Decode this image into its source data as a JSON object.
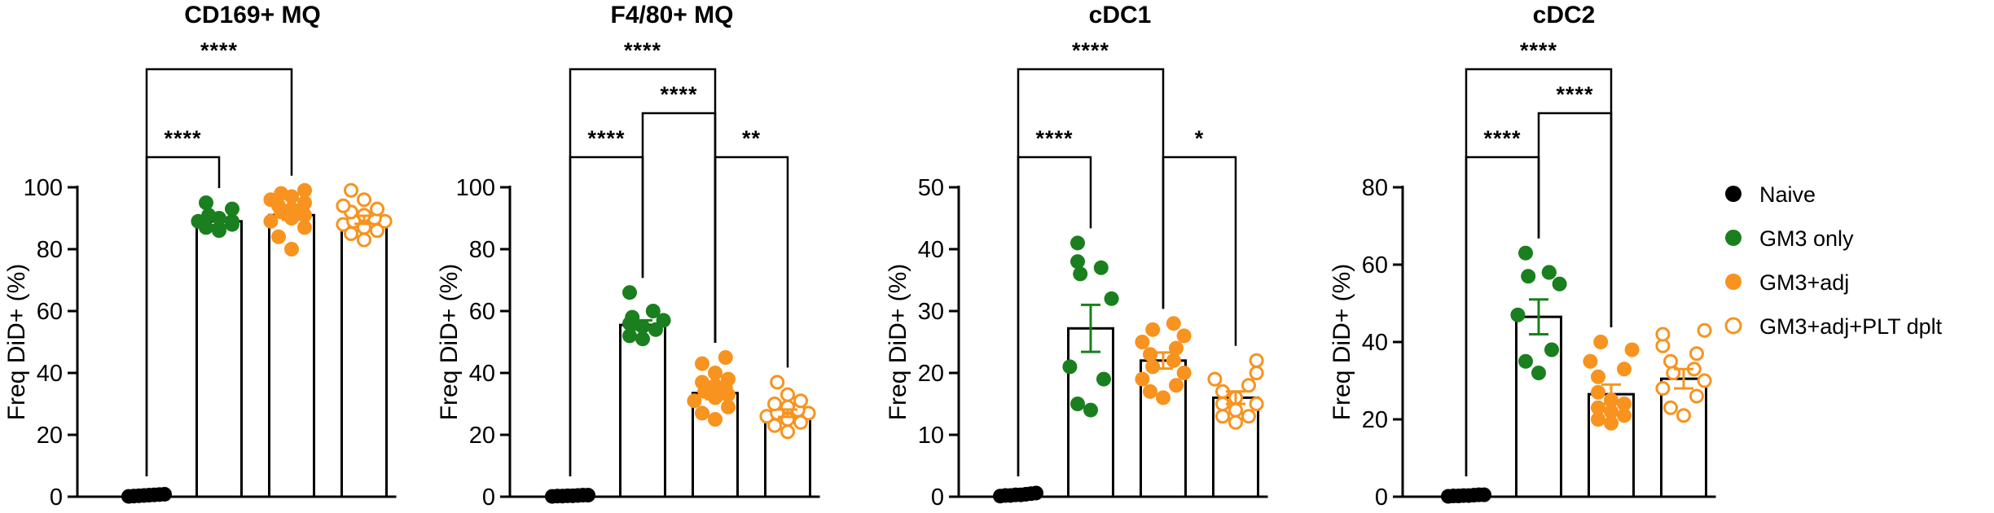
{
  "colors": {
    "naive": "#000000",
    "gm3_only": "#1a7f1e",
    "gm3_adj": "#f7931e",
    "gm3_adj_plt": "#f7931e"
  },
  "legend": [
    {
      "key": "naive",
      "label": "Naive",
      "marker": "filled"
    },
    {
      "key": "gm3_only",
      "label": "GM3 only",
      "marker": "filled"
    },
    {
      "key": "gm3_adj",
      "label": "GM3+adj",
      "marker": "filled"
    },
    {
      "key": "gm3_adj_plt",
      "label": "GM3+adj+PLT dplt",
      "marker": "open"
    }
  ],
  "chart_data": [
    {
      "type": "bar",
      "title": "CD169+ MQ",
      "ylabel": "Freq DiD+ (%)",
      "ylim": [
        0,
        100
      ],
      "yticks": [
        0,
        20,
        40,
        60,
        80,
        100
      ],
      "categories": [
        "Naive",
        "GM3 only",
        "GM3+adj",
        "GM3+adj+PLT dplt"
      ],
      "means": [
        0.5,
        89,
        91,
        89.5
      ],
      "errors": [
        0.2,
        1.2,
        1.5,
        1.3
      ],
      "points": [
        [
          0.1,
          0.2,
          0.3,
          0.4,
          0.5,
          0.6,
          0.7,
          0.8
        ],
        [
          86,
          87,
          88,
          89,
          89,
          90,
          91,
          93,
          95
        ],
        [
          80,
          84,
          87,
          89,
          90,
          91,
          92,
          93,
          93,
          94,
          95,
          96,
          97,
          98,
          99
        ],
        [
          83,
          85,
          86,
          87,
          88,
          89,
          89,
          90,
          91,
          92,
          93,
          94,
          96,
          99
        ]
      ],
      "sig": [
        {
          "from": 0,
          "to": 1,
          "label": "****"
        },
        {
          "from": 0,
          "to": 2,
          "label": "****"
        }
      ]
    },
    {
      "type": "bar",
      "title": "F4/80+ MQ",
      "ylabel": "Freq DiD+ (%)",
      "ylim": [
        0,
        100
      ],
      "yticks": [
        0,
        20,
        40,
        60,
        80,
        100
      ],
      "categories": [
        "Naive",
        "GM3 only",
        "GM3+adj",
        "GM3+adj+PLT dplt"
      ],
      "means": [
        0.3,
        55.5,
        33.5,
        27
      ],
      "errors": [
        0.1,
        1.5,
        2,
        1.2
      ],
      "points": [
        [
          0.1,
          0.2,
          0.2,
          0.3,
          0.3,
          0.4,
          0.5,
          0.5
        ],
        [
          51,
          52,
          54,
          55,
          56,
          57,
          58,
          60,
          66
        ],
        [
          25,
          27,
          29,
          31,
          32,
          33,
          34,
          35,
          36,
          37,
          38,
          40,
          43,
          45
        ],
        [
          21,
          23,
          24,
          25,
          26,
          27,
          27,
          28,
          29,
          30,
          31,
          33,
          37
        ]
      ],
      "sig": [
        {
          "from": 1,
          "to": 2,
          "label": "****"
        },
        {
          "from": 2,
          "to": 3,
          "label": "**"
        },
        {
          "from": 0,
          "to": 1,
          "label": "****"
        },
        {
          "from": 0,
          "to": 2,
          "label": "****"
        }
      ]
    },
    {
      "type": "bar",
      "title": "cDC1",
      "ylabel": "Freq DiD+ (%)",
      "ylim": [
        0,
        50
      ],
      "yticks": [
        0,
        10,
        20,
        30,
        40,
        50
      ],
      "categories": [
        "Naive",
        "GM3 only",
        "GM3+adj",
        "GM3+adj+PLT dplt"
      ],
      "means": [
        0.3,
        27.2,
        22,
        16
      ],
      "errors": [
        0.1,
        3.8,
        1.3,
        1
      ],
      "points": [
        [
          0.1,
          0.2,
          0.2,
          0.3,
          0.3,
          0.4,
          0.5,
          0.6
        ],
        [
          14,
          15,
          19,
          21,
          32,
          36,
          37,
          38,
          41
        ],
        [
          16,
          17,
          18,
          19,
          20,
          21,
          22,
          22,
          23,
          24,
          25,
          26,
          27,
          28
        ],
        [
          12,
          13,
          13,
          14,
          15,
          15,
          16,
          17,
          18,
          19,
          20,
          22
        ]
      ],
      "sig": [
        {
          "from": 0,
          "to": 1,
          "label": "****"
        },
        {
          "from": 2,
          "to": 3,
          "label": "*"
        },
        {
          "from": 0,
          "to": 2,
          "label": "****"
        }
      ]
    },
    {
      "type": "bar",
      "title": "cDC2",
      "ylabel": "Freq DiD+ (%)",
      "ylim": [
        0,
        80
      ],
      "yticks": [
        0,
        20,
        40,
        60,
        80
      ],
      "categories": [
        "Naive",
        "GM3 only",
        "GM3+adj",
        "GM3+adj+PLT dplt"
      ],
      "means": [
        0.3,
        46.5,
        26.5,
        30.5
      ],
      "errors": [
        0.1,
        4.5,
        2.5,
        2.5
      ],
      "points": [
        [
          0.1,
          0.2,
          0.2,
          0.3,
          0.3,
          0.4,
          0.5,
          0.5
        ],
        [
          32,
          35,
          38,
          47,
          55,
          57,
          58,
          58,
          63
        ],
        [
          19,
          20,
          21,
          22,
          23,
          24,
          25,
          27,
          31,
          33,
          35,
          38,
          40
        ],
        [
          21,
          23,
          26,
          28,
          30,
          32,
          33,
          35,
          37,
          39,
          42,
          43
        ]
      ],
      "sig": [
        {
          "from": 0,
          "to": 1,
          "label": "****"
        },
        {
          "from": 1,
          "to": 2,
          "label": "****"
        },
        {
          "from": 0,
          "to": 2,
          "label": "****"
        }
      ]
    }
  ]
}
